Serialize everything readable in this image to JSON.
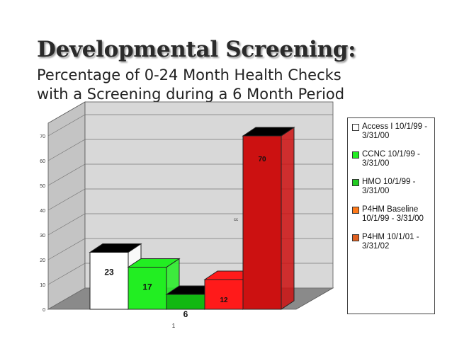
{
  "header": {
    "title": "Developmental Screening:",
    "subtitle_line1": "Percentage of 0-24 Month Health Checks",
    "subtitle_line2": "with a Screening during a 6 Month Period"
  },
  "chart_data": {
    "type": "bar",
    "categories": [
      "1"
    ],
    "ylim": [
      0,
      70
    ],
    "yticks": [
      0,
      10,
      20,
      30,
      40,
      50,
      60,
      70
    ],
    "grid": true,
    "legend_placement": "right",
    "annotation": "cc",
    "series": [
      {
        "name": "Access I 10/1/99 - 3/31/00",
        "values": [
          23
        ],
        "color": "#ffffff",
        "top_color": "#000000"
      },
      {
        "name": "CCNC 10/1/99 - 3/31/00",
        "values": [
          17
        ],
        "color": "#22ee22",
        "top_color": "#22ee22"
      },
      {
        "name": "HMO 10/1/99 - 3/31/00",
        "values": [
          6
        ],
        "color": "#12b812",
        "top_color": "#000000"
      },
      {
        "name": "P4HM Baseline 10/1/99 - 3/31/00",
        "values": [
          12
        ],
        "color": "#ff1a1a",
        "top_color": "#ff1a1a"
      },
      {
        "name": "P4HM 10/1/01 - 3/31/02",
        "values": [
          70
        ],
        "color": "#cc1111",
        "top_color": "#000000"
      }
    ],
    "legend_swatches": [
      "#ffffff",
      "#22ee22",
      "#22cc22",
      "#ff7a1a",
      "#e06020"
    ]
  }
}
